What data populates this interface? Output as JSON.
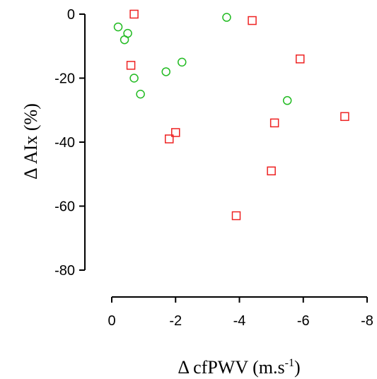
{
  "chart_data": {
    "type": "scatter",
    "title": "",
    "xlabel": "Δ cfPWV (m.s",
    "xlabel_sup": "-1",
    "xlabel_suffix": ")",
    "ylabel": "Δ AIx (%)",
    "xlim": [
      0,
      -8
    ],
    "ylim": [
      -80,
      0
    ],
    "x_direction": "reversed",
    "xticks": [
      0,
      -2,
      -4,
      -6,
      -8
    ],
    "xtick_labels": [
      "0",
      "-2",
      "-4",
      "-6",
      "-8"
    ],
    "yticks": [
      0,
      -20,
      -40,
      -60,
      -80
    ],
    "ytick_labels": [
      "0",
      "-20",
      "-40",
      "-60",
      "-80"
    ],
    "grid": false,
    "legend": "none",
    "series": [
      {
        "marker": "circle",
        "color": "#22bb22",
        "points": [
          {
            "x": -0.2,
            "y": -4
          },
          {
            "x": -0.5,
            "y": -6
          },
          {
            "x": -0.4,
            "y": -8
          },
          {
            "x": -0.7,
            "y": -20
          },
          {
            "x": -0.9,
            "y": -25
          },
          {
            "x": -1.7,
            "y": -18
          },
          {
            "x": -2.2,
            "y": -15
          },
          {
            "x": -3.6,
            "y": -1
          },
          {
            "x": -5.5,
            "y": -27
          }
        ]
      },
      {
        "marker": "square",
        "color": "#ee2222",
        "points": [
          {
            "x": -0.7,
            "y": 0
          },
          {
            "x": -0.6,
            "y": -16
          },
          {
            "x": -1.8,
            "y": -39
          },
          {
            "x": -2.0,
            "y": -37
          },
          {
            "x": -3.9,
            "y": -63
          },
          {
            "x": -4.4,
            "y": -2
          },
          {
            "x": -5.0,
            "y": -49
          },
          {
            "x": -5.1,
            "y": -34
          },
          {
            "x": -5.9,
            "y": -14
          },
          {
            "x": -7.3,
            "y": -32
          }
        ]
      }
    ]
  }
}
